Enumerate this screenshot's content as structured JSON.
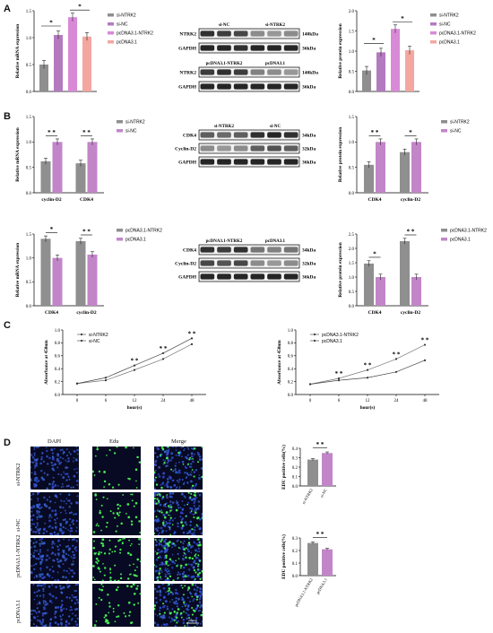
{
  "panels": {
    "A": "A",
    "B": "B",
    "C": "C",
    "D": "D"
  },
  "colors": {
    "gray": "#8f8f8f",
    "purple": "#b47ac0",
    "pink": "#d88ad6",
    "salmon": "#f4a6a0",
    "lilac": "#c286c8"
  },
  "A": {
    "mrna": {
      "ylabel": "Relative mRNA expression",
      "yticks": [
        "0.0",
        "0.5",
        "1.0",
        "1.5"
      ],
      "legend": [
        "si-NTRK2",
        "si-NC",
        "pcDNA3.1-NTRK2",
        "pcDNA3.1"
      ],
      "sig": [
        "*",
        "*"
      ]
    },
    "protein": {
      "ylabel": "Relative protein expression",
      "yticks": [
        "0.0",
        "0.5",
        "1.0",
        "1.5",
        "2.0"
      ],
      "legend": [
        "si-NTRK2",
        "si-NC",
        "pcDNA3.1-NTRK2",
        "pcDNA3.1"
      ],
      "sig": [
        "*",
        "*"
      ]
    },
    "blot1": {
      "top": [
        "si-NC",
        "si-NTRK2"
      ],
      "rows": [
        "NTRK2",
        "GAPDH"
      ],
      "kda": [
        "140kDa",
        "36kDa"
      ]
    },
    "blot2": {
      "top": [
        "pcDNA3.1-NTRK2",
        "pcDNA3.1"
      ],
      "rows": [
        "NTRK2",
        "GAPDH"
      ],
      "kda": [
        "140kDa",
        "36kDa"
      ]
    }
  },
  "B": {
    "mrna1": {
      "ylabel": "Relative mRNA expression",
      "yticks": [
        "0.0",
        "0.5",
        "1.0",
        "1.5"
      ],
      "categories": [
        "cyclin-D2",
        "CDK4"
      ],
      "legend": [
        "si-NTRK2",
        "si-NC"
      ],
      "sig": [
        "* *",
        "* *"
      ]
    },
    "protein1": {
      "ylabel": "Relative protein expression",
      "yticks": [
        "0.0",
        "0.5",
        "1.0",
        "1.5"
      ],
      "categories": [
        "CDK4",
        "cyclin-D2"
      ],
      "legend": [
        "si-NTRK2",
        "si-NC"
      ],
      "sig": [
        "* *",
        "*"
      ]
    },
    "blot1": {
      "top": [
        "si-NTRK2",
        "si-NC"
      ],
      "rows": [
        "CDK4",
        "Cyclin-D2",
        "GAPDH"
      ],
      "kda": [
        "34kDa",
        "32kDa",
        "36kDa"
      ]
    },
    "mrna2": {
      "ylabel": "Relative mRNA expression",
      "yticks": [
        "0.0",
        "0.5",
        "1.0",
        "1.5"
      ],
      "categories": [
        "CDK4",
        "cyclin-D2"
      ],
      "legend": [
        "pcDNA3.1-NTRK2",
        "pcDNA3.1"
      ],
      "sig": [
        "*",
        "* *"
      ]
    },
    "protein2": {
      "ylabel": "Relative protein expression",
      "yticks": [
        "0.0",
        "0.5",
        "1.0",
        "1.5",
        "2.0",
        "2.5"
      ],
      "categories": [
        "CDK4",
        "cyclin-D2"
      ],
      "legend": [
        "pcDNA3.1-NTRK2",
        "pcDNA3.1"
      ],
      "sig": [
        "*",
        "* *"
      ]
    },
    "blot2": {
      "top": [
        "pcDNA3.1-NTRK2",
        "pcDNA3.1"
      ],
      "rows": [
        "CDK4",
        "Cyclin-D2",
        "GAPDH"
      ],
      "kda": [
        "34kDa",
        "32kDa",
        "36kDa"
      ]
    }
  },
  "C": {
    "left": {
      "ylabel": "Absorbance at 450nm",
      "xlabel": "hour(s)",
      "xticks": [
        "0",
        "6",
        "12",
        "24",
        "48"
      ],
      "yticks": [
        "0.0",
        "0.2",
        "0.4",
        "0.6",
        "0.8",
        "1.0"
      ],
      "legend": [
        "si-NTRK2",
        "si-NC"
      ],
      "sig": [
        "* *",
        "* *",
        "* *"
      ]
    },
    "right": {
      "ylabel": "Absorbance at 450nm",
      "xlabel": "hour(s)",
      "xticks": [
        "0",
        "6",
        "12",
        "24",
        "48"
      ],
      "yticks": [
        "0.0",
        "0.2",
        "0.4",
        "0.6",
        "0.8",
        "1.0"
      ],
      "legend": [
        "pcDNA3.1-NTRK2",
        "pcDNA3.1"
      ],
      "sig": [
        "* *",
        "* *",
        "* *",
        "* *"
      ]
    }
  },
  "D": {
    "cols": [
      "DAPI",
      "Edu",
      "Merge"
    ],
    "rows": [
      "si-NTRK2",
      "si-NC",
      "pcDNA3.1-NTRK2",
      "pcDNA3.1"
    ],
    "scale": "200μm",
    "bar1": {
      "ylabel": "EDU positive cells(%)",
      "yticks": [
        "0.0",
        "0.1",
        "0.2",
        "0.3",
        "0.4"
      ],
      "categories": [
        "si-NTRK2",
        "si-NC"
      ],
      "sig": "* *"
    },
    "bar2": {
      "ylabel": "EDU positive cells(%)",
      "yticks": [
        "0.0",
        "0.1",
        "0.2",
        "0.3"
      ],
      "categories": [
        "pcDNA3.1-NTRK2",
        "pcDNA3.1"
      ],
      "sig": "* *"
    }
  },
  "chart_data": [
    {
      "type": "bar",
      "id": "A-mrna",
      "categories": [
        "si-NTRK2",
        "si-NC",
        "pcDNA3.1-NTRK2",
        "pcDNA3.1"
      ],
      "values": [
        0.5,
        1.05,
        1.38,
        1.02
      ],
      "ylim": [
        0,
        1.5
      ]
    },
    {
      "type": "bar",
      "id": "A-protein",
      "categories": [
        "si-NTRK2",
        "si-NC",
        "pcDNA3.1-NTRK2",
        "pcDNA3.1"
      ],
      "values": [
        0.52,
        0.97,
        1.55,
        1.02
      ],
      "ylim": [
        0,
        2.0
      ]
    },
    {
      "type": "bar",
      "id": "B-mrna1",
      "categories": [
        "cyclin-D2",
        "CDK4"
      ],
      "series": [
        {
          "name": "si-NTRK2",
          "values": [
            0.62,
            0.58
          ]
        },
        {
          "name": "si-NC",
          "values": [
            1.0,
            1.0
          ]
        }
      ],
      "ylim": [
        0,
        1.5
      ]
    },
    {
      "type": "bar",
      "id": "B-protein1",
      "categories": [
        "CDK4",
        "cyclin-D2"
      ],
      "series": [
        {
          "name": "si-NTRK2",
          "values": [
            0.55,
            0.8
          ]
        },
        {
          "name": "si-NC",
          "values": [
            1.0,
            1.0
          ]
        }
      ],
      "ylim": [
        0,
        1.5
      ]
    },
    {
      "type": "bar",
      "id": "B-mrna2",
      "categories": [
        "CDK4",
        "cyclin-D2"
      ],
      "series": [
        {
          "name": "pcDNA3.1-NTRK2",
          "values": [
            1.4,
            1.35
          ]
        },
        {
          "name": "pcDNA3.1",
          "values": [
            1.0,
            1.07
          ]
        }
      ],
      "ylim": [
        0,
        1.5
      ]
    },
    {
      "type": "bar",
      "id": "B-protein2",
      "categories": [
        "CDK4",
        "cyclin-D2"
      ],
      "series": [
        {
          "name": "pcDNA3.1-NTRK2",
          "values": [
            1.47,
            2.25
          ]
        },
        {
          "name": "pcDNA3.1",
          "values": [
            1.0,
            1.0
          ]
        }
      ],
      "ylim": [
        0,
        2.5
      ]
    },
    {
      "type": "line",
      "id": "C-left",
      "x": [
        "0",
        "6",
        "12",
        "24",
        "48"
      ],
      "series": [
        {
          "name": "si-NTRK2",
          "values": [
            0.17,
            0.22,
            0.38,
            0.55,
            0.78
          ]
        },
        {
          "name": "si-NC",
          "values": [
            0.17,
            0.26,
            0.45,
            0.64,
            0.87
          ]
        }
      ],
      "ylim": [
        0,
        1.0
      ]
    },
    {
      "type": "line",
      "id": "C-right",
      "x": [
        "0",
        "6",
        "12",
        "24",
        "48"
      ],
      "series": [
        {
          "name": "pcDNA3.1-NTRK2",
          "values": [
            0.16,
            0.25,
            0.38,
            0.55,
            0.77
          ]
        },
        {
          "name": "pcDNA3.1",
          "values": [
            0.16,
            0.22,
            0.26,
            0.35,
            0.53
          ]
        }
      ],
      "ylim": [
        0,
        1.0
      ]
    },
    {
      "type": "bar",
      "id": "D-bar1",
      "categories": [
        "si-NTRK2",
        "si-NC"
      ],
      "values": [
        0.28,
        0.35
      ],
      "ylim": [
        0,
        0.4
      ]
    },
    {
      "type": "bar",
      "id": "D-bar2",
      "categories": [
        "pcDNA3.1-NTRK2",
        "pcDNA3.1"
      ],
      "values": [
        0.26,
        0.21
      ],
      "ylim": [
        0,
        0.3
      ]
    }
  ]
}
